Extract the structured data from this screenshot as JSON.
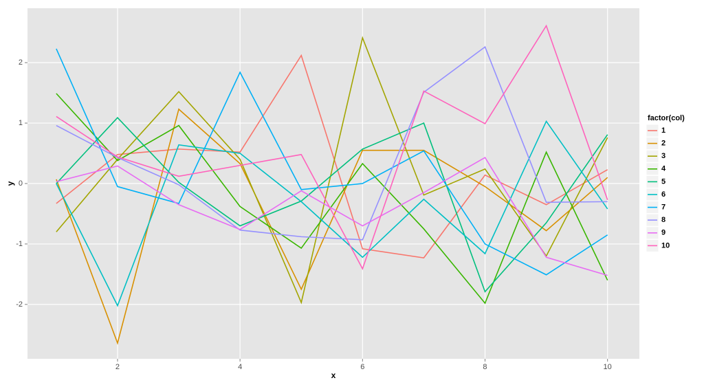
{
  "chart_data": {
    "type": "line",
    "x_label": "x",
    "y_label": "y",
    "legend_title": "factor(col)",
    "legend_position": "right",
    "grid": true,
    "x": [
      1,
      2,
      3,
      4,
      5,
      6,
      7,
      8,
      9,
      10
    ],
    "xlim": [
      0.53,
      10.52
    ],
    "xticks": [
      2,
      4,
      6,
      8,
      10
    ],
    "ylim": [
      -2.9,
      2.9
    ],
    "yticks": [
      -2,
      -1,
      0,
      1,
      2
    ],
    "series": [
      {
        "name": "1",
        "color": "#F8766D",
        "values": [
          -0.33,
          0.48,
          0.57,
          0.52,
          2.12,
          -1.08,
          -1.23,
          0.14,
          -0.35,
          0.23
        ]
      },
      {
        "name": "2",
        "color": "#D89000",
        "values": [
          0.07,
          -2.64,
          1.23,
          0.33,
          -1.75,
          0.55,
          0.55,
          -0.05,
          -0.78,
          0.1
        ]
      },
      {
        "name": "3",
        "color": "#A3A500",
        "values": [
          -0.8,
          0.4,
          1.52,
          0.4,
          -1.97,
          2.41,
          -0.19,
          0.24,
          -1.2,
          0.76
        ]
      },
      {
        "name": "4",
        "color": "#39B600",
        "values": [
          1.49,
          0.38,
          0.96,
          -0.38,
          -1.07,
          0.33,
          -0.75,
          -1.98,
          0.52,
          -1.6
        ]
      },
      {
        "name": "5",
        "color": "#00BF7D",
        "values": [
          0.0,
          1.09,
          0.02,
          -0.7,
          -0.29,
          0.57,
          1.0,
          -1.79,
          -0.65,
          0.81
        ]
      },
      {
        "name": "6",
        "color": "#00BFC4",
        "values": [
          0.0,
          -2.02,
          0.64,
          0.5,
          -0.3,
          -1.22,
          -0.26,
          -1.16,
          1.03,
          -0.42
        ]
      },
      {
        "name": "7",
        "color": "#00B0F6",
        "values": [
          2.23,
          -0.05,
          -0.33,
          1.84,
          -0.1,
          0.0,
          0.54,
          -1.0,
          -1.51,
          -0.85
        ]
      },
      {
        "name": "8",
        "color": "#9590FF",
        "values": [
          0.96,
          0.43,
          -0.02,
          -0.77,
          -0.88,
          -0.93,
          1.51,
          2.26,
          -0.31,
          -0.3
        ]
      },
      {
        "name": "9",
        "color": "#E76BF3",
        "values": [
          0.03,
          0.29,
          -0.35,
          -0.76,
          -0.12,
          -0.7,
          -0.15,
          0.43,
          -1.22,
          -1.52
        ]
      },
      {
        "name": "10",
        "color": "#FF62BC",
        "values": [
          1.11,
          0.44,
          0.12,
          0.3,
          0.48,
          -1.41,
          1.53,
          0.99,
          2.61,
          -0.27
        ]
      }
    ]
  }
}
